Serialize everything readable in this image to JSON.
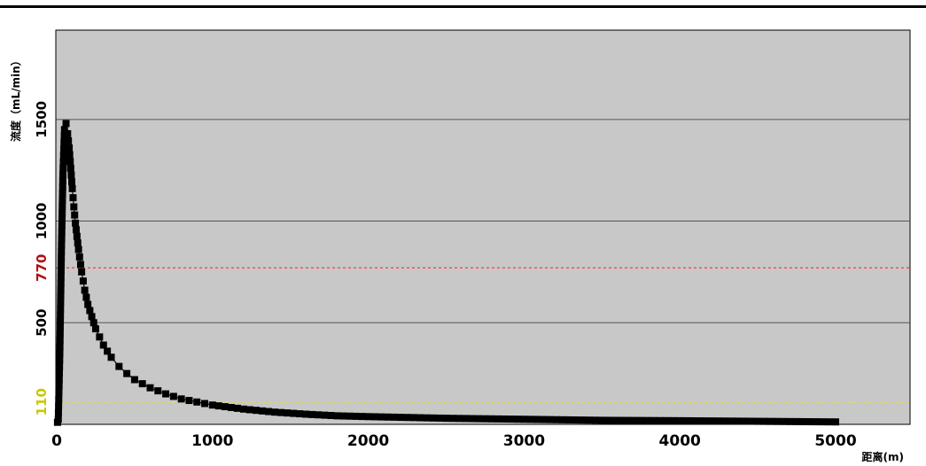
{
  "chart_data": {
    "type": "scatter",
    "xlabel": "距离(m)",
    "ylabel": "流度（mL/min）",
    "xlim": [
      0,
      5500
    ],
    "ylim": [
      0,
      1800
    ],
    "x_ticks": [
      "0",
      "1000",
      "2000",
      "3000",
      "4000",
      "5000"
    ],
    "y_ticks": [
      {
        "value": 110,
        "label": "110",
        "color": "#c8c800"
      },
      {
        "value": 500,
        "label": "500",
        "color": "#000000"
      },
      {
        "value": 770,
        "label": "770",
        "color": "#b01010"
      },
      {
        "value": 1000,
        "label": "1000",
        "color": "#000000"
      },
      {
        "value": 1500,
        "label": "1500",
        "color": "#000000"
      }
    ],
    "gridlines": [
      500,
      1000,
      1500
    ],
    "reference_lines": [
      {
        "value": 770,
        "color": "#ff3030"
      },
      {
        "value": 110,
        "color": "#e8e800"
      }
    ],
    "background": "#c8c8c8",
    "marker_color": "#000000",
    "series": [
      {
        "x": [
          5,
          10,
          20,
          30,
          40,
          50,
          60,
          70,
          80,
          90,
          100,
          110,
          120,
          140,
          160,
          180,
          200,
          250,
          300,
          350,
          400,
          450,
          500,
          600,
          700,
          800,
          900,
          1000,
          1200,
          1400,
          1600,
          1800,
          2000,
          2500,
          3000,
          3500,
          4000,
          4500,
          5000
        ],
        "y": [
          10,
          25,
          350,
          850,
          1230,
          1450,
          1480,
          1430,
          1360,
          1260,
          1160,
          1070,
          990,
          860,
          750,
          660,
          590,
          470,
          390,
          330,
          285,
          250,
          220,
          180,
          150,
          125,
          110,
          95,
          75,
          60,
          50,
          42,
          38,
          30,
          25,
          20,
          18,
          15,
          12
        ]
      }
    ]
  }
}
